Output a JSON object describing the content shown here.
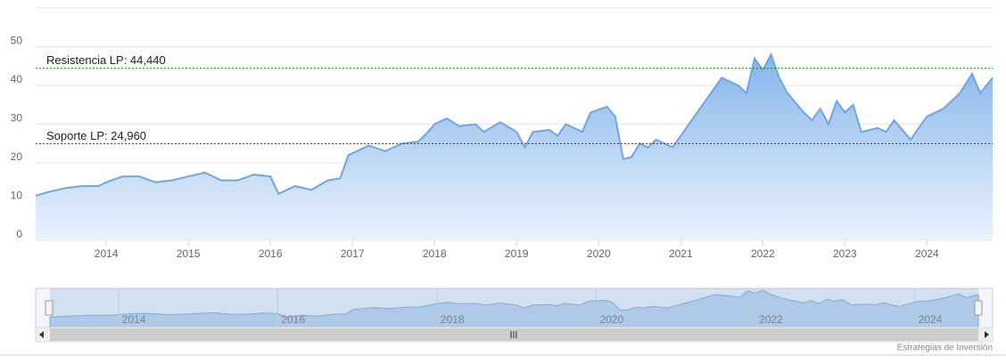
{
  "chart_data": {
    "type": "area",
    "x": [
      2013.14,
      2013.3,
      2013.5,
      2013.7,
      2013.9,
      2014.0,
      2014.2,
      2014.4,
      2014.6,
      2014.8,
      2015.0,
      2015.2,
      2015.4,
      2015.6,
      2015.8,
      2016.0,
      2016.1,
      2016.3,
      2016.5,
      2016.7,
      2016.85,
      2016.95,
      2017.2,
      2017.4,
      2017.6,
      2017.8,
      2017.9,
      2018.0,
      2018.15,
      2018.3,
      2018.5,
      2018.6,
      2018.8,
      2019.0,
      2019.1,
      2019.2,
      2019.4,
      2019.5,
      2019.6,
      2019.8,
      2019.9,
      2020.1,
      2020.2,
      2020.3,
      2020.4,
      2020.5,
      2020.6,
      2020.7,
      2020.9,
      2021.0,
      2021.1,
      2021.3,
      2021.5,
      2021.7,
      2021.8,
      2021.9,
      2022.0,
      2022.1,
      2022.2,
      2022.3,
      2022.5,
      2022.6,
      2022.7,
      2022.8,
      2022.9,
      2023.0,
      2023.1,
      2023.2,
      2023.4,
      2023.5,
      2023.6,
      2023.8,
      2023.9,
      2024.0,
      2024.2,
      2024.4,
      2024.55,
      2024.65,
      2024.8
    ],
    "values": [
      11.5,
      12.5,
      13.5,
      14,
      14,
      15,
      16.5,
      16.5,
      15,
      15.5,
      16.5,
      17.5,
      15.5,
      15.5,
      17,
      16.5,
      12,
      14,
      13,
      15.5,
      16,
      22,
      24.5,
      23,
      25,
      25.5,
      27.5,
      30,
      31.5,
      29.5,
      30,
      28,
      30.5,
      28,
      24,
      28,
      28.5,
      27,
      30,
      28,
      33,
      34.5,
      32,
      21,
      21.5,
      25,
      24,
      26,
      24,
      27,
      30,
      36,
      42,
      40,
      38,
      47,
      44,
      48,
      42,
      38,
      33,
      31,
      34,
      30,
      36,
      33,
      35,
      28,
      29,
      28,
      31,
      26,
      29,
      32,
      34,
      38,
      43,
      38,
      42
    ],
    "color": "#6fa6e0",
    "xlim": [
      2013.14,
      2024.8
    ],
    "xticks": [
      2014,
      2015,
      2016,
      2017,
      2018,
      2019,
      2020,
      2021,
      2022,
      2023,
      2024
    ],
    "ylim": [
      0,
      60
    ],
    "yticks": [
      0,
      10,
      20,
      30,
      40,
      50
    ],
    "grid": true,
    "reference_lines": [
      {
        "label": "Resistencia LP: 44,440",
        "value": 44.44,
        "color": "#2e8b2e"
      },
      {
        "label": "Soporte LP: 24,960",
        "value": 24.96,
        "color": "#b22222"
      }
    ],
    "navigator_xticks": [
      2014,
      2016,
      2018,
      2020,
      2022,
      2024
    ],
    "credit": "Estrategias de Inversión"
  }
}
